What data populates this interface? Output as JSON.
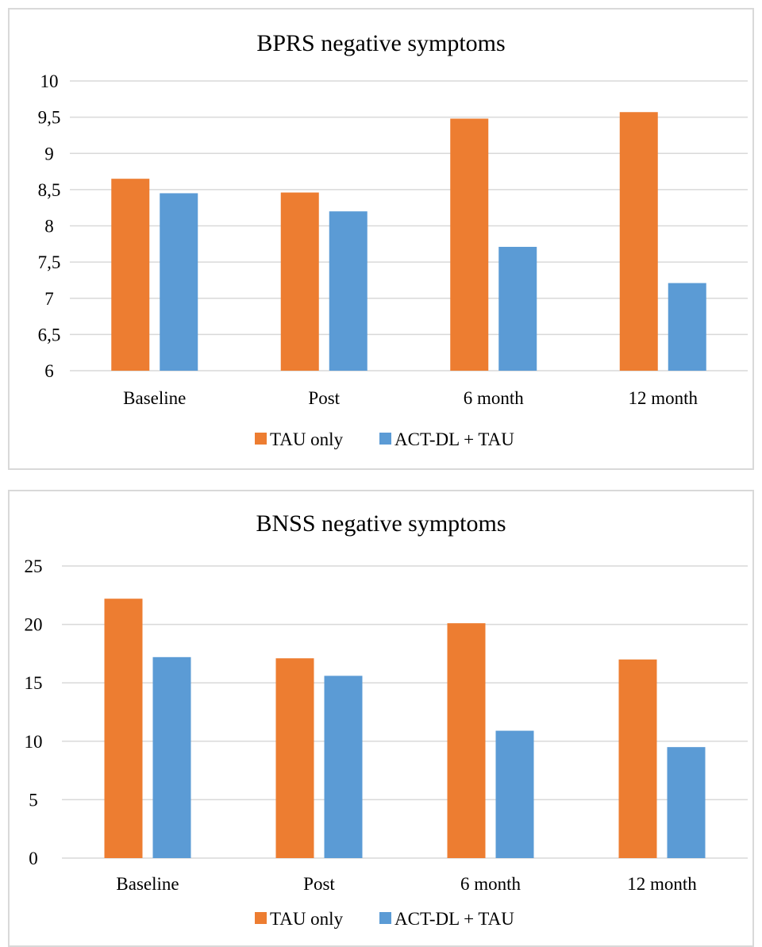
{
  "colors": {
    "tau_only": "#ED7D31",
    "act_dl_tau": "#5B9BD5",
    "gridline": "#d9d9d9",
    "border": "#d9d9d9"
  },
  "chart_data": [
    {
      "type": "bar",
      "title": "BPRS negative symptoms",
      "categories": [
        "Baseline",
        "Post",
        "6 month",
        "12 month"
      ],
      "series": [
        {
          "name": "TAU only",
          "values": [
            8.65,
            8.46,
            9.48,
            9.57
          ]
        },
        {
          "name": "ACT-DL + TAU",
          "values": [
            8.45,
            8.2,
            7.71,
            7.21
          ]
        }
      ],
      "ylim": [
        6,
        10
      ],
      "yticks": [
        "6",
        "6,5",
        "7",
        "7,5",
        "8",
        "8,5",
        "9",
        "9,5",
        "10"
      ],
      "grid": true,
      "legend": "bottom"
    },
    {
      "type": "bar",
      "title": "BNSS negative symptoms",
      "categories": [
        "Baseline",
        "Post",
        "6 month",
        "12 month"
      ],
      "series": [
        {
          "name": "TAU only",
          "values": [
            22.2,
            17.1,
            20.1,
            17.0
          ]
        },
        {
          "name": "ACT-DL + TAU",
          "values": [
            17.2,
            15.6,
            10.9,
            9.5
          ]
        }
      ],
      "ylim": [
        0,
        25
      ],
      "yticks": [
        "0",
        "5",
        "10",
        "15",
        "20",
        "25"
      ],
      "grid": true,
      "legend": "bottom"
    }
  ]
}
